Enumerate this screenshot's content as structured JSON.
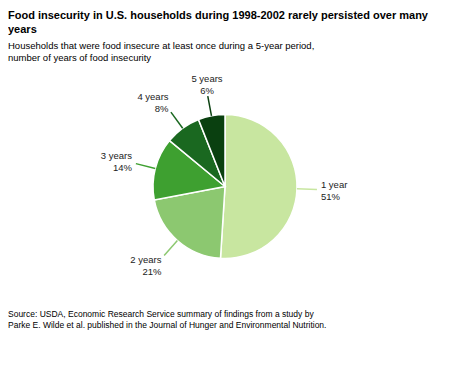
{
  "chart_data": {
    "type": "pie",
    "title": "Food insecurity in U.S. households during 1998-2002 rarely persisted over many years",
    "subtitle": [
      "Households that were food insecure at least once during a 5-year period,",
      "number of years of food insecurity"
    ],
    "annotations": [
      "Source: USDA, Economic Research Service summary of findings from a study by",
      "Parke E. Wilde et al. published in the Journal of Hunger and Environmental Nutrition."
    ],
    "categories": [
      "1 year",
      "2 years",
      "3 years",
      "4 years",
      "5 years"
    ],
    "values": [
      51,
      21,
      14,
      8,
      6
    ],
    "value_labels": [
      "51%",
      "21%",
      "14%",
      "8%",
      "6%"
    ],
    "data_labels": true,
    "colors": [
      "#c8e6a0",
      "#8cc870",
      "#3ea030",
      "#1a6820",
      "#0a4010"
    ]
  }
}
